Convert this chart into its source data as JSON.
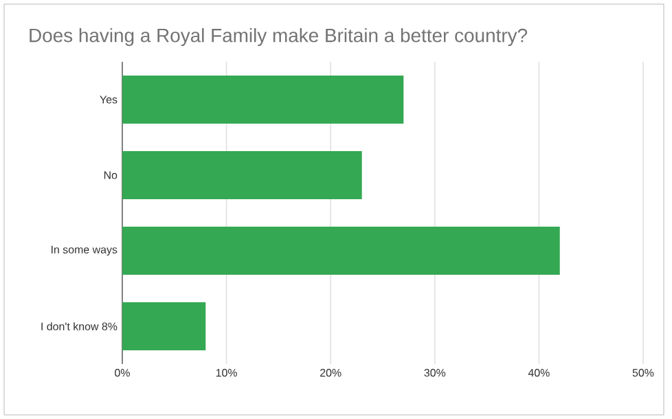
{
  "chart_data": {
    "type": "bar",
    "orientation": "horizontal",
    "title": "Does having a Royal Family make Britain a better country?",
    "categories": [
      "Yes",
      "No",
      "In some ways",
      "I don't know 8%"
    ],
    "values": [
      27,
      23,
      42,
      8
    ],
    "color": "#34a853",
    "xlim": [
      0,
      50
    ],
    "xticks": [
      {
        "value": 0,
        "label": "0%"
      },
      {
        "value": 10,
        "label": "10%"
      },
      {
        "value": 20,
        "label": "20%"
      },
      {
        "value": 30,
        "label": "30%"
      },
      {
        "value": 40,
        "label": "40%"
      },
      {
        "value": 50,
        "label": "50%"
      }
    ],
    "grid": "x"
  }
}
